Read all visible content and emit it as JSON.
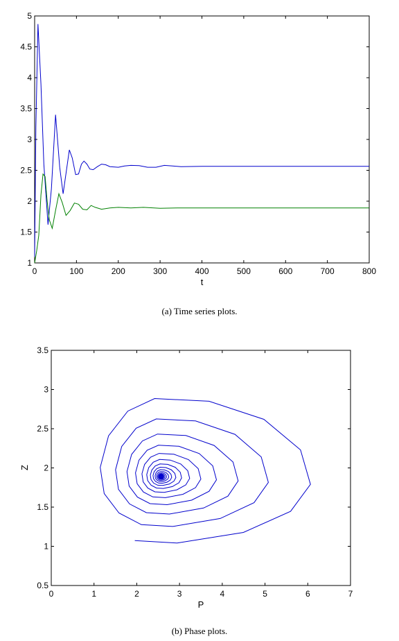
{
  "chart_data": [
    {
      "type": "line",
      "title": "",
      "xlabel": "t",
      "ylabel": "",
      "xlim": [
        0,
        800
      ],
      "ylim": [
        1,
        5
      ],
      "xticks": [
        "0",
        "100",
        "200",
        "300",
        "400",
        "500",
        "600",
        "700",
        "800"
      ],
      "yticks": [
        "1",
        "1.5",
        "2",
        "2.5",
        "3",
        "3.5",
        "4",
        "4.5",
        "5"
      ],
      "grid": false,
      "series": [
        {
          "color": "#0000cc",
          "x": [
            0,
            3,
            8,
            15,
            22,
            32,
            40,
            50,
            60,
            68,
            75,
            83,
            90,
            98,
            105,
            112,
            118,
            125,
            132,
            140,
            150,
            160,
            170,
            180,
            200,
            215,
            230,
            250,
            270,
            290,
            310,
            330,
            350,
            400,
            500,
            600,
            700,
            800
          ],
          "values": [
            1.1,
            3.2,
            4.87,
            3.9,
            2.6,
            1.62,
            2.2,
            3.4,
            2.55,
            2.12,
            2.45,
            2.83,
            2.7,
            2.43,
            2.44,
            2.6,
            2.65,
            2.6,
            2.52,
            2.51,
            2.56,
            2.6,
            2.59,
            2.56,
            2.55,
            2.57,
            2.58,
            2.575,
            2.55,
            2.55,
            2.58,
            2.57,
            2.56,
            2.565,
            2.565,
            2.565,
            2.565,
            2.565
          ]
        },
        {
          "color": "#008000",
          "x": [
            0,
            5,
            10,
            15,
            20,
            25,
            30,
            35,
            42,
            50,
            58,
            66,
            75,
            85,
            95,
            105,
            115,
            125,
            135,
            145,
            160,
            180,
            200,
            230,
            260,
            300,
            340,
            400,
            500,
            600,
            700,
            800
          ],
          "values": [
            1.0,
            1.2,
            1.45,
            2.1,
            2.44,
            2.4,
            2.0,
            1.7,
            1.56,
            1.85,
            2.12,
            1.98,
            1.77,
            1.85,
            1.97,
            1.95,
            1.87,
            1.86,
            1.93,
            1.9,
            1.87,
            1.89,
            1.9,
            1.89,
            1.9,
            1.885,
            1.89,
            1.89,
            1.89,
            1.89,
            1.89,
            1.89
          ]
        }
      ]
    },
    {
      "type": "line",
      "title": "",
      "xlabel": "P",
      "ylabel": "Z",
      "xlim": [
        0,
        7
      ],
      "ylim": [
        0.5,
        3.5
      ],
      "xticks": [
        "0",
        "1",
        "2",
        "3",
        "4",
        "5",
        "6",
        "7"
      ],
      "yticks": [
        "0.5",
        "1",
        "1.5",
        "2",
        "2.5",
        "3",
        "3.5"
      ],
      "grid": false,
      "series": [
        {
          "color": "#0000cc",
          "spiral": {
            "center": [
              2.57,
              1.89
            ],
            "start_angle_deg": 250,
            "turns": 18,
            "points_per_turn": 14,
            "right_radius": [
              3.87,
              0.01
            ],
            "left_radius": [
              1.8,
              0.01
            ],
            "up_radius": [
              1.19,
              0.005
            ],
            "down_radius": [
              0.87,
              0.005
            ]
          }
        }
      ]
    }
  ],
  "captions": {
    "a": "(a)  Time series plots.",
    "b": "(b)  Phase plots."
  }
}
